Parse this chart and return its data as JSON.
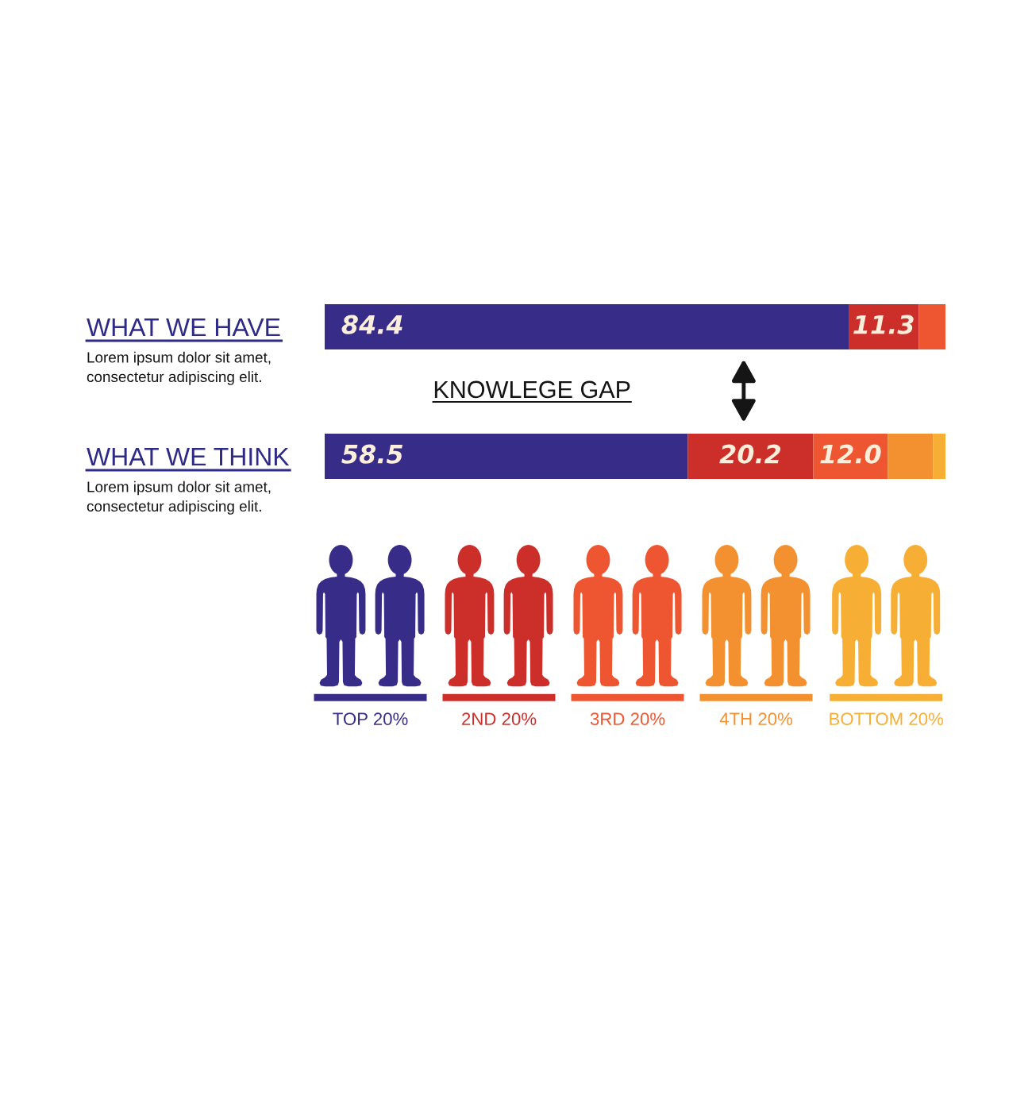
{
  "chart_data": {
    "type": "bar",
    "orientation": "horizontal",
    "stacked": true,
    "categories": [
      "WHAT WE HAVE",
      "WHAT WE THINK"
    ],
    "series": [
      {
        "name": "TOP 20%",
        "color": "#372d88",
        "values": [
          84.4,
          58.5
        ],
        "value_labels": [
          "84.4",
          "58.5"
        ]
      },
      {
        "name": "2ND 20%",
        "color": "#cc2f2a",
        "values": [
          11.3,
          20.2
        ],
        "value_labels": [
          "11.3",
          "20.2"
        ]
      },
      {
        "name": "3RD 20%",
        "color": "#ee5631",
        "values": [
          4.3,
          12.0
        ],
        "value_labels": [
          null,
          "12.0"
        ]
      },
      {
        "name": "4TH 20%",
        "color": "#f39130",
        "values": [
          null,
          7.3
        ]
      },
      {
        "name": "BOTTOM 20%",
        "color": "#f7ae35",
        "values": [
          null,
          2.0
        ]
      }
    ],
    "annotations": [
      "KNOWLEGE GAP",
      "Lorem ipsum dolor sit amet,\nconsectetur adipiscing elit.",
      "Lorem ipsum dolor sit amet,\nconsectetur adipiscing elit."
    ],
    "legend": "bottom",
    "tick_labels": "y"
  }
}
